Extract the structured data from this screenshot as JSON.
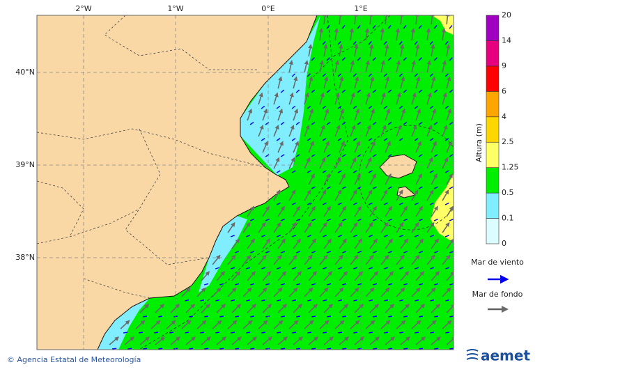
{
  "map": {
    "lon_labels": [
      "2°W",
      "1°W",
      "0°E",
      "1°E"
    ],
    "lat_labels": [
      "40°N",
      "39°N",
      "38°N"
    ]
  },
  "colorbar": {
    "title": "Altura (m)",
    "levels": [
      0,
      0.1,
      0.5,
      1.25,
      2.5,
      4,
      6,
      9,
      14,
      20
    ],
    "colors": [
      "#dcfdff",
      "#80eeff",
      "#00ee00",
      "#ffff66",
      "#ffd700",
      "#ffa500",
      "#ff0000",
      "#e6007e",
      "#a000c0"
    ]
  },
  "legend": [
    {
      "label": "Mar de viento",
      "color": "#0000ee"
    },
    {
      "label": "Mar de fondo",
      "color": "#606060"
    }
  ],
  "footer": {
    "credit": "© Agencia Estatal de Meteorología",
    "logo": "aemet"
  }
}
